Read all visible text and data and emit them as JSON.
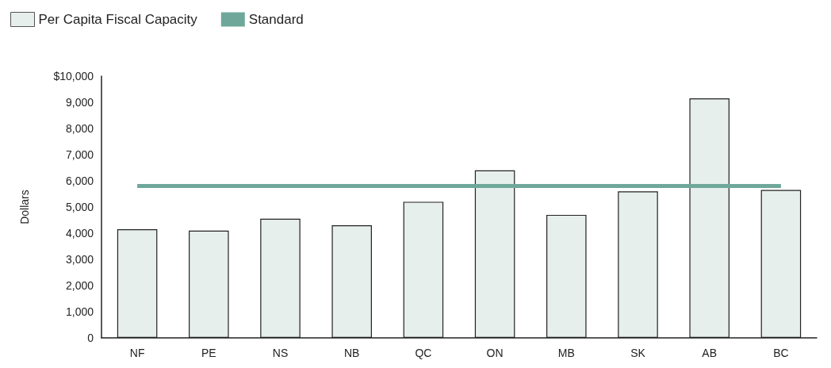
{
  "chart_data": {
    "type": "bar",
    "ylabel": "Dollars",
    "categories": [
      "NF",
      "PE",
      "NS",
      "NB",
      "QC",
      "ON",
      "MB",
      "SK",
      "AB",
      "BC"
    ],
    "series": [
      {
        "name": "Per Capita Fiscal Capacity",
        "color": "#e6efeb",
        "values": [
          4150,
          4100,
          4550,
          4300,
          5200,
          6400,
          4700,
          5600,
          9150,
          5650
        ]
      },
      {
        "name": "Standard",
        "type": "line",
        "color": "#6fa89a",
        "values": [
          5800,
          5800,
          5800,
          5800,
          5800,
          5800,
          5800,
          5800,
          5800,
          5800
        ]
      }
    ],
    "ylim": [
      0,
      10000
    ],
    "yticks": [
      0,
      {
        "value": 1000,
        "label": "1,000"
      },
      {
        "value": 2000,
        "label": "2,000"
      },
      {
        "value": 3000,
        "label": "3,000"
      },
      {
        "value": 4000,
        "label": "4,000"
      },
      {
        "value": 5000,
        "label": "5,000"
      },
      {
        "value": 6000,
        "label": "6,000"
      },
      {
        "value": 7000,
        "label": "7,000"
      },
      {
        "value": 8000,
        "label": "8,000"
      },
      {
        "value": 9000,
        "label": "9,000"
      },
      {
        "value": 10000,
        "label": "$10,000"
      }
    ],
    "grid": false,
    "legend": "top left",
    "marker": "none",
    "line_style": "solid"
  }
}
